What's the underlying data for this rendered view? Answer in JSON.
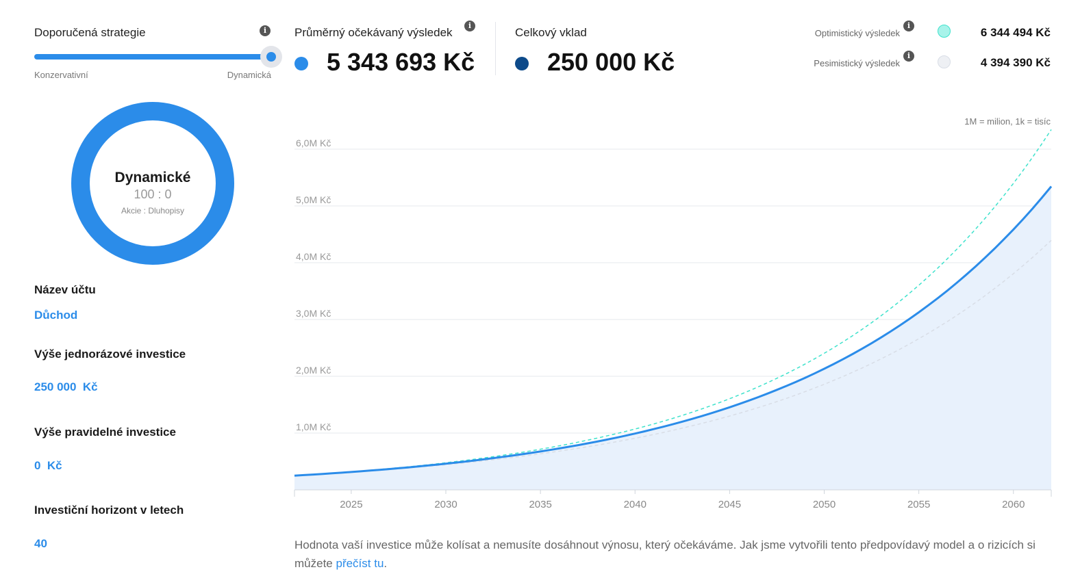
{
  "strategy": {
    "title": "Doporučená strategie",
    "min_label": "Konzervativní",
    "max_label": "Dynamická",
    "position": 1.0
  },
  "results": {
    "expected_label": "Průměrný očekávaný výsledek",
    "expected_value": "5 343 693 Kč",
    "deposit_label": "Celkový vklad",
    "deposit_value": "250 000 Kč",
    "optimistic_label": "Optimistický výsledek",
    "optimistic_value": "6 344 494 Kč",
    "pessimistic_label": "Pesimistický výsledek",
    "pessimistic_value": "4 394 390 Kč"
  },
  "donut": {
    "title": "Dynamické",
    "ratio": "100 : 0",
    "subtitle": "Akcie : Dluhopisy"
  },
  "fields": {
    "account_name_label": "Název účtu",
    "account_name_value": "Důchod",
    "lump_sum_label": "Výše jednorázové investice",
    "lump_sum_value": "250 000  Kč",
    "regular_label": "Výše pravidelné investice",
    "regular_value": "0  Kč",
    "horizon_label": "Investiční horizont v letech",
    "horizon_value": "40"
  },
  "chart_note": "1M = milion, 1k = tisíc",
  "disclaimer": {
    "text": "Hodnota vaší investice může kolísat a nemusíte dosáhnout výnosu, který očekáváme. Jak jsme vytvořili tento předpovídavý model a o rizicích si můžete",
    "link": "přečíst tu",
    "end": "."
  },
  "colors": {
    "expected": "#2b8ce9",
    "deposit": "#0d4a8a",
    "optimistic": "#3ee2cc",
    "optimistic_fill": "#a8f3ea",
    "pessimistic": "#d8dde6",
    "pessimistic_fill": "#eef0f4",
    "area_fill": "#e8f1fc"
  },
  "chart_data": {
    "type": "line",
    "title": "",
    "xlabel": "",
    "ylabel": "",
    "x_range": [
      2022,
      2062
    ],
    "ylim": [
      0,
      6300000
    ],
    "x_ticks": [
      2025,
      2030,
      2035,
      2040,
      2045,
      2050,
      2055,
      2060
    ],
    "y_ticks": [
      {
        "value": 1000000,
        "label": "1,0M Kč"
      },
      {
        "value": 2000000,
        "label": "2,0M Kč"
      },
      {
        "value": 3000000,
        "label": "3,0M Kč"
      },
      {
        "value": 4000000,
        "label": "4,0M Kč"
      },
      {
        "value": 5000000,
        "label": "5,0M Kč"
      },
      {
        "value": 6000000,
        "label": "6,0M Kč"
      }
    ],
    "series": [
      {
        "name": "Průměrný očekávaný výsledek",
        "style": "solid-area",
        "start": 250000,
        "end": 5343693
      },
      {
        "name": "Optimistický výsledek",
        "style": "dashed",
        "start": 250000,
        "end": 6344494
      },
      {
        "name": "Pesimistický výsledek",
        "style": "dashed",
        "start": 250000,
        "end": 4394390
      }
    ]
  }
}
